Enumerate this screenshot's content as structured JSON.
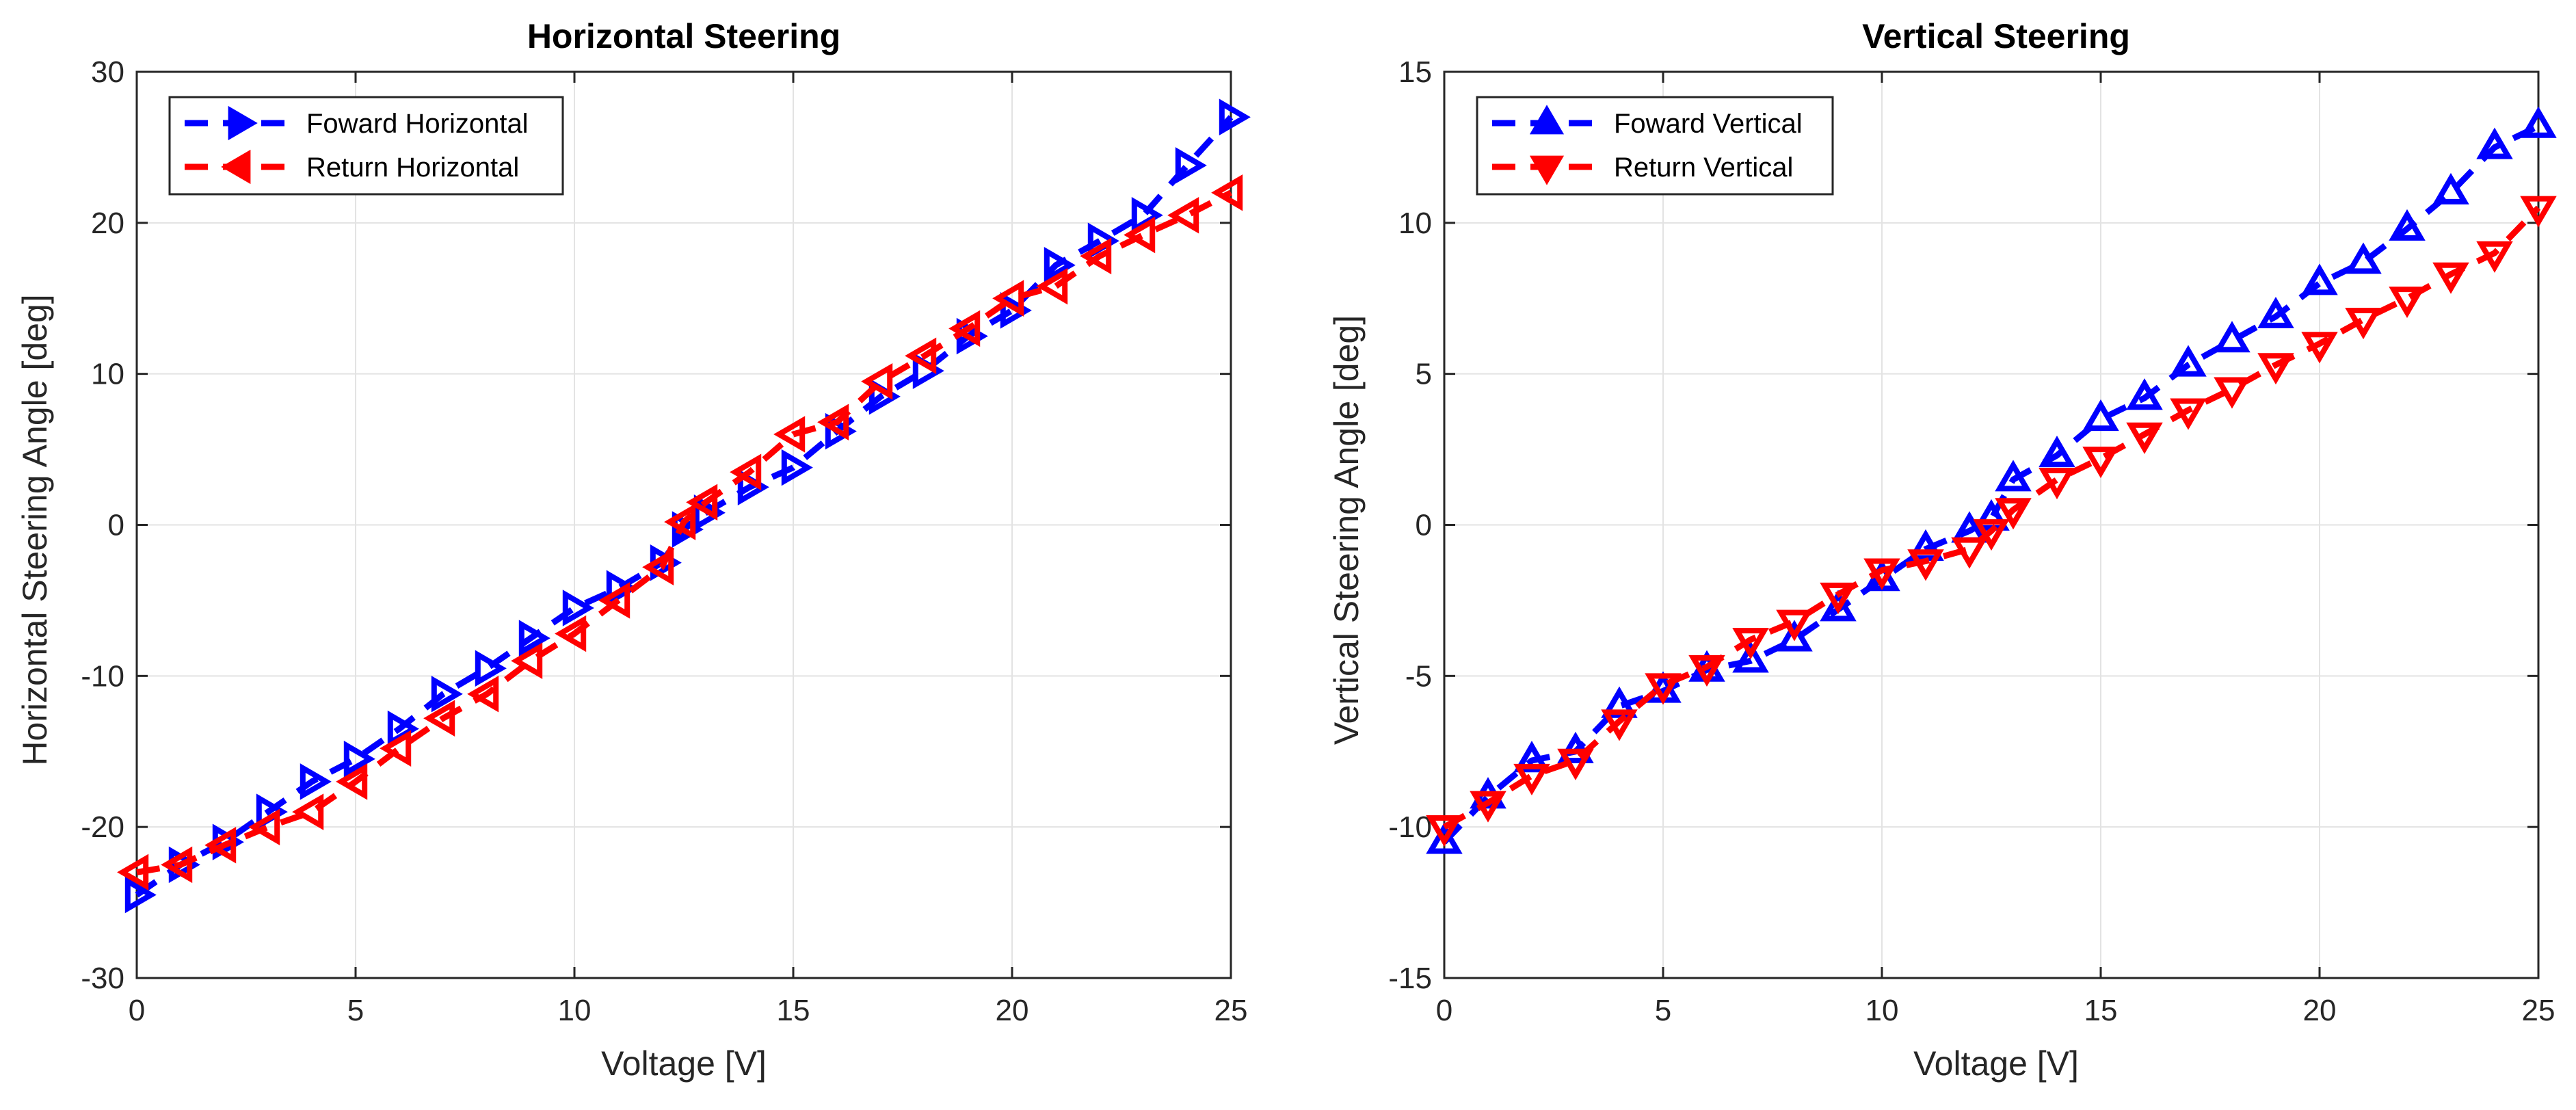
{
  "chart_data": [
    {
      "type": "line",
      "title": "Horizontal Steering",
      "xlabel": "Voltage [V]",
      "ylabel": "Horizontal Steering Angle [deg]",
      "xlim": [
        0,
        25
      ],
      "ylim": [
        -30,
        30
      ],
      "xticks": [
        0,
        5,
        10,
        15,
        20,
        25
      ],
      "yticks": [
        -30,
        -20,
        -10,
        0,
        10,
        20,
        30
      ],
      "grid": true,
      "legend_position": "top-left",
      "series": [
        {
          "name": "Foward Horizontal",
          "color": "#0000ff",
          "marker": "triangle-right",
          "x": [
            0,
            1,
            2,
            3,
            4,
            5,
            6,
            7,
            8,
            9,
            10,
            11,
            12,
            12.5,
            13,
            14,
            15,
            16,
            17,
            18,
            19,
            20,
            21,
            22,
            23,
            24,
            25
          ],
          "y": [
            -24.5,
            -22.5,
            -21,
            -19,
            -17,
            -15.5,
            -13.5,
            -11.2,
            -9.5,
            -7.5,
            -5.5,
            -4.2,
            -2.5,
            -0.3,
            0.8,
            2.5,
            3.8,
            6.2,
            8.5,
            10.2,
            12.5,
            14.2,
            17.2,
            18.8,
            20.5,
            23.8,
            27
          ]
        },
        {
          "name": "Return Horizontal",
          "color": "#ff0000",
          "marker": "triangle-left",
          "x": [
            0,
            1,
            2,
            3,
            4,
            5,
            6,
            7,
            8,
            9,
            10,
            11,
            12,
            12.5,
            13,
            14,
            15,
            16,
            17,
            18,
            19,
            20,
            21,
            22,
            23,
            24,
            25
          ],
          "y": [
            -23,
            -22.5,
            -21.2,
            -20,
            -19,
            -17,
            -14.8,
            -12.8,
            -11.2,
            -9,
            -7.2,
            -5,
            -2.8,
            0.2,
            1.5,
            3.5,
            6,
            6.8,
            9.5,
            11.2,
            13,
            15,
            15.8,
            17.8,
            19.2,
            20.5,
            22
          ]
        }
      ]
    },
    {
      "type": "line",
      "title": "Vertical Steering",
      "xlabel": "Voltage [V]",
      "ylabel": "Vertical Steering Angle [deg]",
      "xlim": [
        0,
        25
      ],
      "ylim": [
        -15,
        15
      ],
      "xticks": [
        0,
        5,
        10,
        15,
        20,
        25
      ],
      "yticks": [
        -15,
        -10,
        -5,
        0,
        5,
        10,
        15
      ],
      "grid": true,
      "legend_position": "top-left",
      "series": [
        {
          "name": "Foward Vertical",
          "color": "#0000ff",
          "marker": "triangle-up",
          "x": [
            0,
            1,
            2,
            3,
            4,
            5,
            6,
            7,
            8,
            9,
            10,
            11,
            12,
            12.5,
            13,
            14,
            15,
            16,
            17,
            18,
            19,
            20,
            21,
            22,
            23,
            24,
            25
          ],
          "y": [
            -10.5,
            -9,
            -7.8,
            -7.5,
            -6,
            -5.5,
            -4.8,
            -4.5,
            -3.8,
            -2.8,
            -1.8,
            -0.8,
            -0.2,
            0.2,
            1.5,
            2.3,
            3.5,
            4.2,
            5.3,
            6.1,
            6.9,
            8,
            8.7,
            9.8,
            11,
            12.5,
            13.2
          ]
        },
        {
          "name": "Return Vertical",
          "color": "#ff0000",
          "marker": "triangle-down",
          "x": [
            0,
            1,
            2,
            3,
            4,
            5,
            6,
            7,
            8,
            9,
            10,
            11,
            12,
            12.5,
            13,
            14,
            15,
            16,
            17,
            18,
            19,
            20,
            21,
            22,
            23,
            24,
            25
          ],
          "y": [
            -10,
            -9.2,
            -8.3,
            -7.8,
            -6.5,
            -5.3,
            -4.7,
            -3.8,
            -3.2,
            -2.3,
            -1.5,
            -1.2,
            -0.8,
            -0.2,
            0.5,
            1.5,
            2.2,
            3,
            3.8,
            4.5,
            5.3,
            6,
            6.8,
            7.5,
            8.3,
            9,
            10.5
          ]
        }
      ]
    }
  ]
}
